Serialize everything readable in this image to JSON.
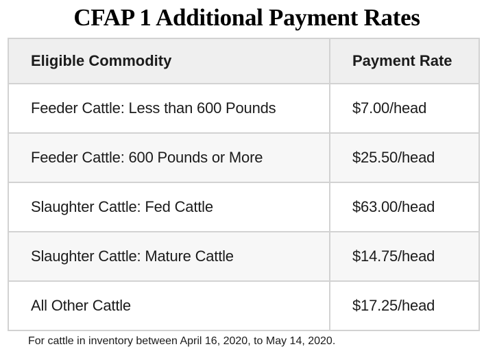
{
  "title": "CFAP 1 Additional Payment Rates",
  "table": {
    "headers": {
      "commodity": "Eligible Commodity",
      "rate": "Payment Rate"
    },
    "rows": [
      {
        "commodity": "Feeder Cattle: Less than 600 Pounds",
        "rate": "$7.00/head"
      },
      {
        "commodity": "Feeder Cattle: 600 Pounds or More",
        "rate": "$25.50/head"
      },
      {
        "commodity": "Slaughter Cattle: Fed Cattle",
        "rate": "$63.00/head"
      },
      {
        "commodity": "Slaughter Cattle: Mature Cattle",
        "rate": "$14.75/head"
      },
      {
        "commodity": "All Other Cattle",
        "rate": "$17.25/head"
      }
    ]
  },
  "footnote": "For cattle in inventory between April 16, 2020, to May 14, 2020.",
  "colors": {
    "header_bg": "#efefef",
    "alt_row_bg": "#f7f7f7",
    "border": "#d2d2d2",
    "text": "#1b1b1b"
  }
}
